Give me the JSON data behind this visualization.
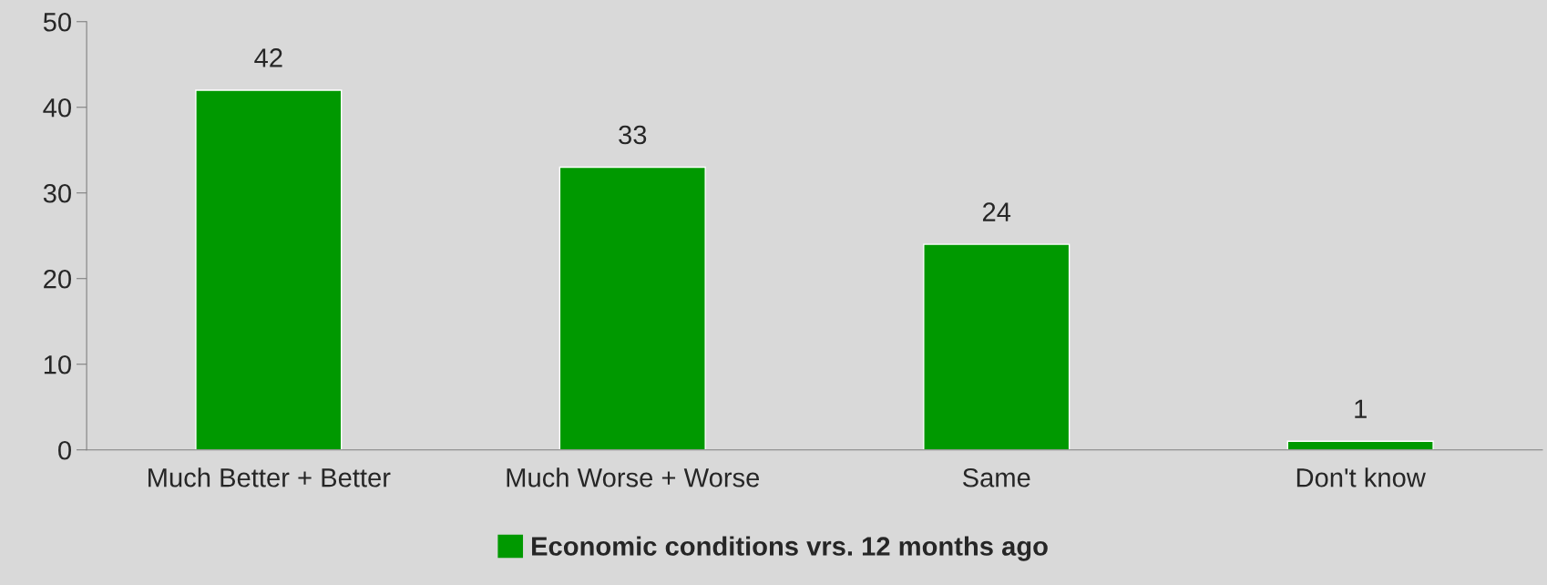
{
  "chart_data": {
    "type": "bar",
    "categories": [
      "Much Better + Better",
      "Much Worse + Worse",
      "Same",
      "Don't know"
    ],
    "series": [
      {
        "name": "Economic conditions vrs. 12 months ago",
        "color": "#009900",
        "values": [
          42,
          33,
          24,
          1
        ]
      }
    ],
    "ylim": [
      0,
      50
    ],
    "yticks": [
      0,
      10,
      20,
      30,
      40,
      50
    ],
    "data_labels": true,
    "grid": false,
    "legend": "bottom"
  }
}
